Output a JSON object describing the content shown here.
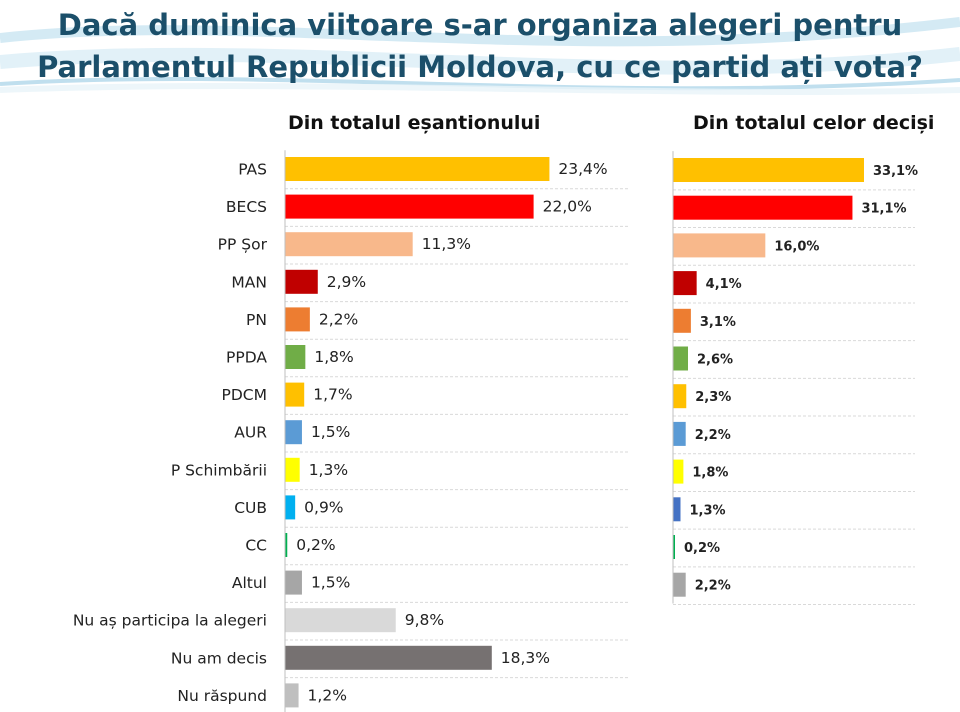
{
  "title": {
    "line1": "Dacă duminica viitoare s-ar organiza alegeri pentru",
    "line2": "Parlamentul Republicii Moldova, cu ce partid ați vota?"
  },
  "chart_data": [
    {
      "type": "bar",
      "orientation": "horizontal",
      "title": "Din totalul eșantionului",
      "categories": [
        "PAS",
        "BECS",
        "PP Șor",
        "MAN",
        "PN",
        "PPDA",
        "PDCM",
        "AUR",
        "P Schimbării",
        "CUB",
        "CC",
        "Altul",
        "Nu aș participa la alegeri",
        "Nu am decis",
        "Nu răspund"
      ],
      "values": [
        23.4,
        22.0,
        11.3,
        2.9,
        2.2,
        1.8,
        1.7,
        1.5,
        1.3,
        0.9,
        0.2,
        1.5,
        9.8,
        18.3,
        1.2
      ],
      "labels": [
        "23,4%",
        "22,0%",
        "11,3%",
        "2,9%",
        "2,2%",
        "1,8%",
        "1,7%",
        "1,5%",
        "1,3%",
        "0,9%",
        "0,2%",
        "1,5%",
        "9,8%",
        "18,3%",
        "1,2%"
      ],
      "colors": [
        "#ffc000",
        "#ff0000",
        "#f8b88b",
        "#c00000",
        "#ed7d31",
        "#70ad47",
        "#ffc000",
        "#5b9bd5",
        "#ffff00",
        "#00b0f0",
        "#00b050",
        "#a6a6a6",
        "#d9d9d9",
        "#767171",
        "#bfbfbf"
      ],
      "grid": true,
      "legend": "none"
    },
    {
      "type": "bar",
      "orientation": "horizontal",
      "title": "Din totalul celor deciși",
      "categories": [
        "PAS",
        "BECS",
        "PP Șor",
        "MAN",
        "PN",
        "PPDA",
        "PDCM",
        "AUR",
        "P Schimbării",
        "CUB",
        "CC",
        "Altul"
      ],
      "values": [
        33.1,
        31.1,
        16.0,
        4.1,
        3.1,
        2.6,
        2.3,
        2.2,
        1.8,
        1.3,
        0.2,
        2.2
      ],
      "labels": [
        "33,1%",
        "31,1%",
        "16,0%",
        "4,1%",
        "3,1%",
        "2,6%",
        "2,3%",
        "2,2%",
        "1,8%",
        "1,3%",
        "0,2%",
        "2,2%"
      ],
      "colors": [
        "#ffc000",
        "#ff0000",
        "#f8b88b",
        "#c00000",
        "#ed7d31",
        "#70ad47",
        "#ffc000",
        "#5b9bd5",
        "#ffff00",
        "#4472c4",
        "#00b050",
        "#a6a6a6"
      ],
      "grid": true,
      "legend": "none"
    }
  ]
}
